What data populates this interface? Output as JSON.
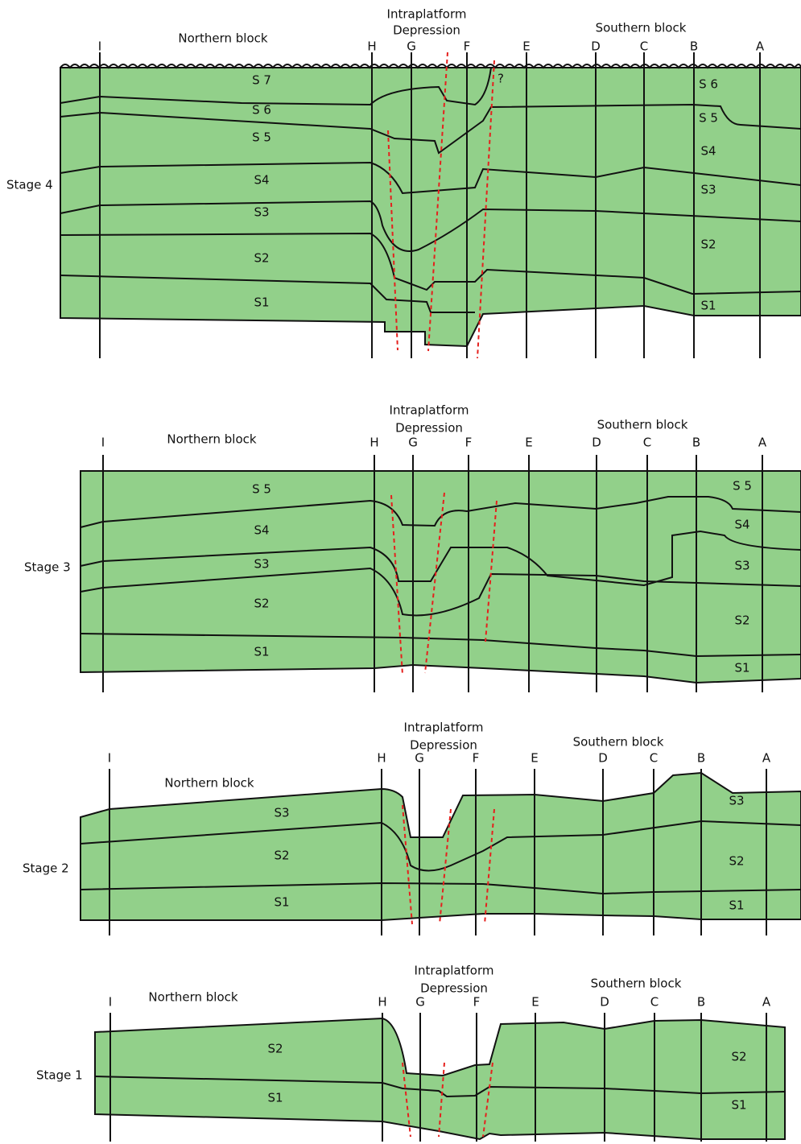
{
  "panels": [
    {
      "stage": "Stage 4",
      "northern": "Northern block",
      "southern": "Southern block",
      "depression": [
        "Intraplatform",
        "Depression"
      ],
      "wells": [
        "I",
        "H",
        "G",
        "F",
        "E",
        "D",
        "C",
        "B",
        "A"
      ],
      "layers_north": [
        "S 7",
        "S 6",
        "S 5",
        "S4",
        "S3",
        "S2",
        "S1"
      ],
      "layers_south": [
        "S 6",
        "S 5",
        "S4",
        "S3",
        "S2",
        "S1"
      ],
      "query": "?"
    },
    {
      "stage": "Stage 3",
      "northern": "Northern block",
      "southern": "Southern block",
      "depression": [
        "Intraplatform",
        "Depression"
      ],
      "wells": [
        "I",
        "H",
        "G",
        "F",
        "E",
        "D",
        "C",
        "B",
        "A"
      ],
      "layers_north": [
        "S 5",
        "S4",
        "S3",
        "S2",
        "S1"
      ],
      "layers_south": [
        "S 5",
        "S4",
        "S3",
        "S2",
        "S1"
      ]
    },
    {
      "stage": "Stage 2",
      "northern": "Northern block",
      "southern": "Southern block",
      "depression": [
        "Intraplatform",
        "Depression"
      ],
      "wells": [
        "I",
        "H",
        "G",
        "F",
        "E",
        "D",
        "C",
        "B",
        "A"
      ],
      "layers_north": [
        "S3",
        "S2",
        "S1"
      ],
      "layers_south": [
        "S3",
        "S2",
        "S1"
      ]
    },
    {
      "stage": "Stage 1",
      "northern": "Northern block",
      "southern": "Southern block",
      "depression": [
        "Intraplatform",
        "Depression"
      ],
      "wells": [
        "I",
        "H",
        "G",
        "F",
        "E",
        "D",
        "C",
        "B",
        "A"
      ],
      "layers_north": [
        "S2",
        "S1"
      ],
      "layers_south": [
        "S2",
        "S1"
      ]
    }
  ]
}
